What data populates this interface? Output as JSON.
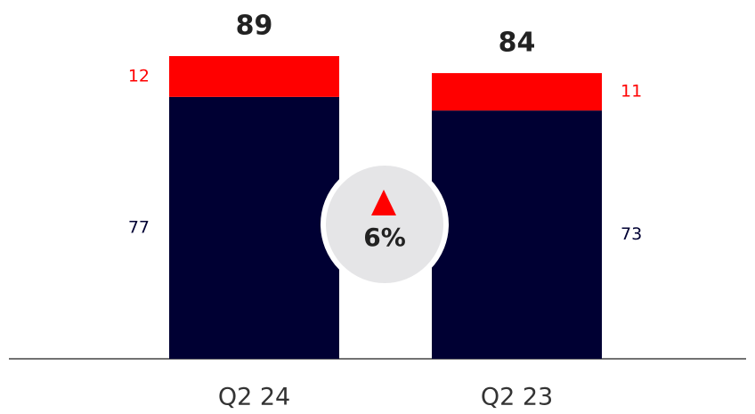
{
  "chart_data": {
    "type": "stacked_bar",
    "categories": [
      "Q2 24",
      "Q2 23"
    ],
    "series": [
      {
        "color": "#000033",
        "values": [
          77,
          73
        ]
      },
      {
        "color": "#ff0000",
        "values": [
          12,
          11
        ]
      }
    ],
    "totals": [
      89,
      84
    ],
    "annotation": "6%"
  }
}
